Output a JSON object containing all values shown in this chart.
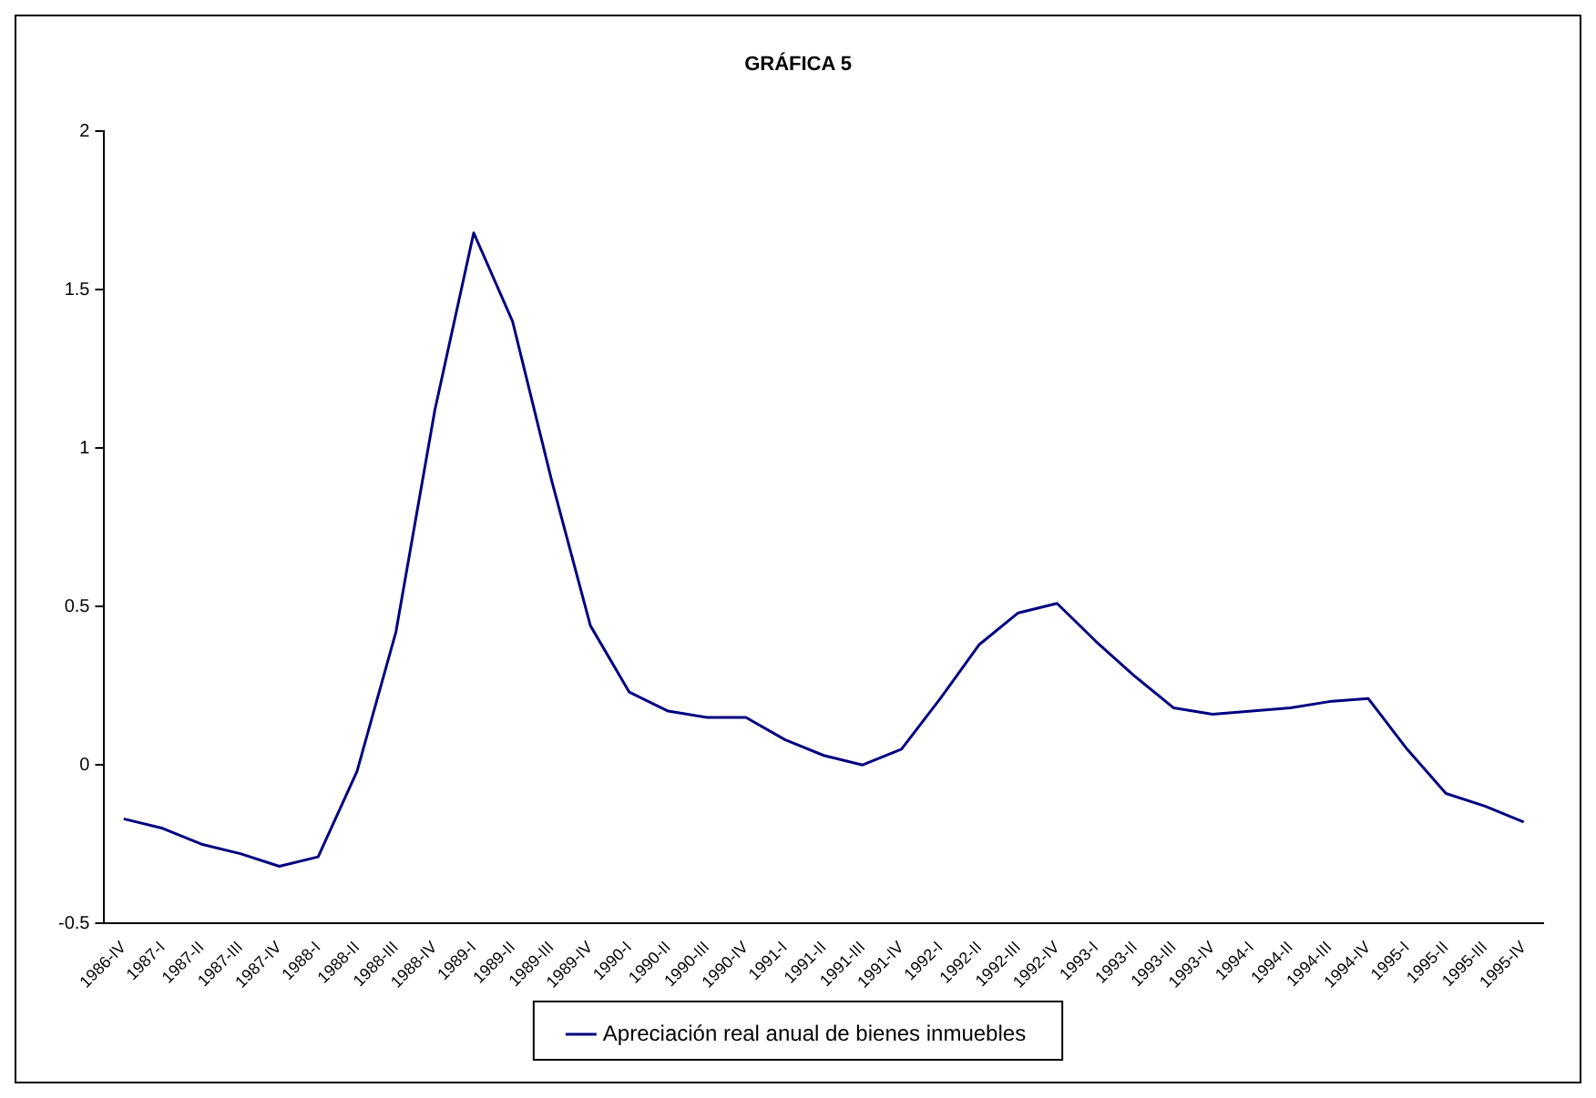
{
  "chart_data": {
    "type": "line",
    "title": "GRÁFICA 5",
    "categories": [
      "1986-IV",
      "1987-I",
      "1987-II",
      "1987-III",
      "1987-IV",
      "1988-I",
      "1988-II",
      "1988-III",
      "1988-IV",
      "1989-I",
      "1989-II",
      "1989-III",
      "1989-IV",
      "1990-I",
      "1990-II",
      "1990-III",
      "1990-IV",
      "1991-I",
      "1991-II",
      "1991-III",
      "1991-IV",
      "1992-I",
      "1992-II",
      "1992-III",
      "1992-IV",
      "1993-I",
      "1993-II",
      "1993-III",
      "1993-IV",
      "1994-I",
      "1994-II",
      "1994-III",
      "1994-IV",
      "1995-I",
      "1995-II",
      "1995-III",
      "1995-IV"
    ],
    "series": [
      {
        "name": "Apreciación real anual de bienes inmuebles",
        "color": "#000080",
        "values": [
          -0.17,
          -0.2,
          -0.25,
          -0.28,
          -0.32,
          -0.29,
          -0.02,
          0.42,
          1.12,
          1.68,
          1.4,
          0.9,
          0.44,
          0.23,
          0.17,
          0.15,
          0.15,
          0.08,
          0.03,
          0.0,
          0.05,
          0.21,
          0.38,
          0.48,
          0.51,
          0.39,
          0.28,
          0.18,
          0.16,
          0.17,
          0.18,
          0.2,
          0.21,
          0.05,
          -0.09,
          -0.13,
          -0.18
        ]
      }
    ],
    "ylim": [
      -0.5,
      2
    ],
    "yticks": [
      -0.5,
      0,
      0.5,
      1,
      1.5,
      2
    ],
    "grid": false,
    "legend": "bottom",
    "marker": "none",
    "line_style": "solid"
  }
}
